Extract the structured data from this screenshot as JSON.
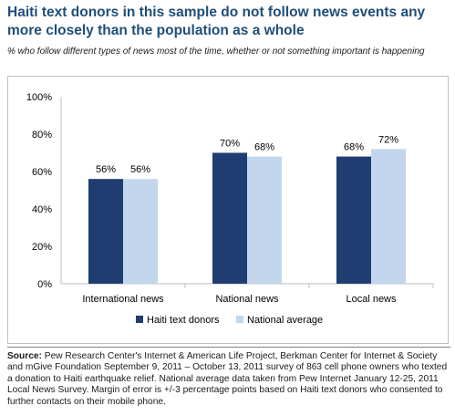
{
  "title": "Haiti text donors in this sample do not follow news events any more closely than the population as a whole",
  "subtitle": "% who follow different types of news most of the time, whether or not something important is happening",
  "colors": {
    "title": "#1f4e79",
    "haiti": "#1f3d70",
    "national": "#c2d6ee",
    "grid": "#bfbfbf",
    "axis_text": "#000000"
  },
  "chart_data": {
    "type": "bar",
    "categories": [
      "International news",
      "National news",
      "Local news"
    ],
    "series": [
      {
        "name": "Haiti text donors",
        "values": [
          56,
          70,
          68
        ]
      },
      {
        "name": "National average",
        "values": [
          56,
          68,
          72
        ]
      }
    ],
    "data_labels": [
      [
        "56%",
        "70%",
        "68%"
      ],
      [
        "56%",
        "68%",
        "72%"
      ]
    ],
    "y_ticks": [
      0,
      20,
      40,
      60,
      80,
      100
    ],
    "y_tick_labels": [
      "0%",
      "20%",
      "40%",
      "60%",
      "80%",
      "100%"
    ],
    "ylim": [
      0,
      100
    ],
    "xlabel": "",
    "ylabel": "",
    "grid": false,
    "legend_position": "bottom"
  },
  "source": {
    "label": "Source:",
    "text": "Pew Research Center's Internet & American Life Project, Berkman Center for Internet & Society and mGive Foundation September 9, 2011 – October 13, 2011 survey of 863 cell phone owners who texted a donation to Haiti earthquake relief. National average data taken from Pew Internet January 12-25, 2011 Local News Survey. Margin of error is +/-3 percentage points based on Haiti text donors who consented to further contacts on their mobile phone."
  }
}
